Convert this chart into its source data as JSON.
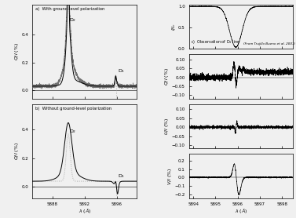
{
  "left_xlim": [
    5885.5,
    5898.5
  ],
  "left_xticks": [
    5888,
    5892,
    5896
  ],
  "right_xlim": [
    5893.8,
    5898.5
  ],
  "right_xticks": [
    5894,
    5895,
    5896,
    5897,
    5898
  ],
  "panel_a_ylim": [
    -0.06,
    0.62
  ],
  "panel_a_yticks": [
    0,
    0.2,
    0.4
  ],
  "panel_b_ylim": [
    -0.08,
    0.58
  ],
  "panel_b_yticks": [
    0,
    0.2,
    0.4
  ],
  "panel_c_ylim": [
    0.0,
    1.05
  ],
  "panel_c_yticks": [
    0.0,
    0.5,
    1.0
  ],
  "panel_qi_ylim": [
    -0.12,
    0.13
  ],
  "panel_qi_yticks": [
    -0.1,
    -0.05,
    0.0,
    0.05,
    0.1
  ],
  "panel_ui_ylim": [
    -0.12,
    0.13
  ],
  "panel_ui_yticks": [
    -0.1,
    -0.05,
    0.0,
    0.05,
    0.1
  ],
  "panel_vi_ylim": [
    -0.25,
    0.28
  ],
  "panel_vi_yticks": [
    -0.2,
    -0.1,
    0.0,
    0.1,
    0.2
  ],
  "D2_wavelength": 5889.95,
  "D1_wavelength": 5895.92,
  "bg_color": "#f0f0f0"
}
